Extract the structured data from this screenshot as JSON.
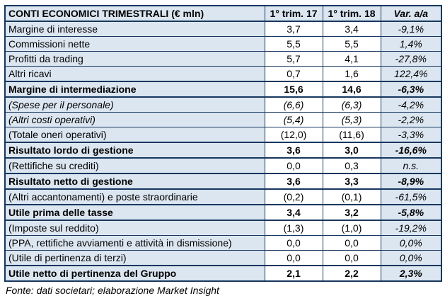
{
  "table": {
    "header": {
      "title": "CONTI ECONOMICI TRIMESTRALI (€ mln)",
      "col_q1_17": "1° trim. 17",
      "col_q1_18": "1° trim. 18",
      "col_var": "Var. a/a"
    },
    "rows": [
      {
        "label": "Margine di interesse",
        "q1_17": "3,7",
        "q1_18": "3,4",
        "var": "-9,1%",
        "style": "normal"
      },
      {
        "label": "Commissioni nette",
        "q1_17": "5,5",
        "q1_18": "5,5",
        "var": "1,4%",
        "style": "normal"
      },
      {
        "label": "Profitti da trading",
        "q1_17": "5,7",
        "q1_18": "4,1",
        "var": "-27,8%",
        "style": "normal"
      },
      {
        "label": "Altri ricavi",
        "q1_17": "0,7",
        "q1_18": "1,6",
        "var": "122,4%",
        "style": "normal"
      },
      {
        "label": "Margine di intermediazione",
        "q1_17": "15,6",
        "q1_18": "14,6",
        "var": "-6,3%",
        "style": "bold"
      },
      {
        "label": "(Spese per il personale)",
        "q1_17": "(6,6)",
        "q1_18": "(6,3)",
        "var": "-4,2%",
        "style": "italic"
      },
      {
        "label": "(Altri costi operativi)",
        "q1_17": "(5,4)",
        "q1_18": "(5,3)",
        "var": "-2,2%",
        "style": "italic"
      },
      {
        "label": "(Totale oneri operativi)",
        "q1_17": "(12,0)",
        "q1_18": "(11,6)",
        "var": "-3,3%",
        "style": "normal"
      },
      {
        "label": "Risultato lordo di gestione",
        "q1_17": "3,6",
        "q1_18": "3,0",
        "var": "-16,6%",
        "style": "bold"
      },
      {
        "label": "(Rettifiche su crediti)",
        "q1_17": "0,0",
        "q1_18": "0,3",
        "var": "n.s.",
        "style": "normal"
      },
      {
        "label": "Risultato netto di gestione",
        "q1_17": "3,6",
        "q1_18": "3,3",
        "var": "-8,9%",
        "style": "bold"
      },
      {
        "label": "(Altri accantonamenti) e poste straordinarie",
        "q1_17": "(0,2)",
        "q1_18": "(0,1)",
        "var": "-61,5%",
        "style": "normal"
      },
      {
        "label": "Utile prima delle tasse",
        "q1_17": "3,4",
        "q1_18": "3,2",
        "var": "-5,8%",
        "style": "bold"
      },
      {
        "label": "(Imposte sul reddito)",
        "q1_17": "(1,3)",
        "q1_18": "(1,0)",
        "var": "-19,2%",
        "style": "normal"
      },
      {
        "label": "(PPA, rettifiche avviamenti e attività in dismissione)",
        "q1_17": "0,0",
        "q1_18": "0,0",
        "var": "0,0%",
        "style": "normal"
      },
      {
        "label": "(Utile di pertinenza di terzi)",
        "q1_17": "0,0",
        "q1_18": "0,0",
        "var": "0,0%",
        "style": "normal"
      },
      {
        "label": "Utile netto di pertinenza del Gruppo",
        "q1_17": "2,1",
        "q1_18": "2,2",
        "var": "2,3%",
        "style": "bold"
      }
    ]
  },
  "footer": {
    "source": "Fonte: dati societari; elaborazione Market Insight"
  },
  "colors": {
    "shaded_bg": "#dce6f1",
    "border": "#17375e",
    "text": "#000000",
    "value_bg": "#ffffff"
  }
}
